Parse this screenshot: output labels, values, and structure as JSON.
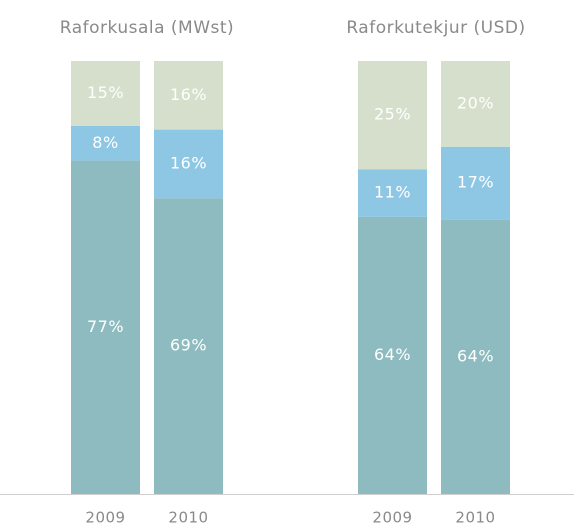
{
  "chart_data": [
    {
      "type": "bar",
      "stacked": true,
      "title": "Raforkusala (MWst)",
      "categories": [
        "2009",
        "2010"
      ],
      "series": [
        {
          "color": "#8dbbbf",
          "values": [
            77,
            69
          ],
          "value_labels": [
            "77%",
            "69%"
          ]
        },
        {
          "color": "#8ec7e4",
          "values": [
            8,
            16
          ],
          "value_labels": [
            "8%",
            "16%"
          ]
        },
        {
          "color": "#d5dfcb",
          "values": [
            15,
            16
          ],
          "value_labels": [
            "15%",
            "16%"
          ]
        }
      ]
    },
    {
      "type": "bar",
      "stacked": true,
      "title": "Raforkutekjur (USD)",
      "categories": [
        "2009",
        "2010"
      ],
      "series": [
        {
          "color": "#8dbbbf",
          "values": [
            64,
            64
          ],
          "value_labels": [
            "64%",
            "64%"
          ]
        },
        {
          "color": "#8ec7e4",
          "values": [
            11,
            17
          ],
          "value_labels": [
            "11%",
            "17%"
          ]
        },
        {
          "color": "#d5dfcb",
          "values": [
            25,
            20
          ],
          "value_labels": [
            "25%",
            "20%"
          ]
        }
      ]
    }
  ]
}
